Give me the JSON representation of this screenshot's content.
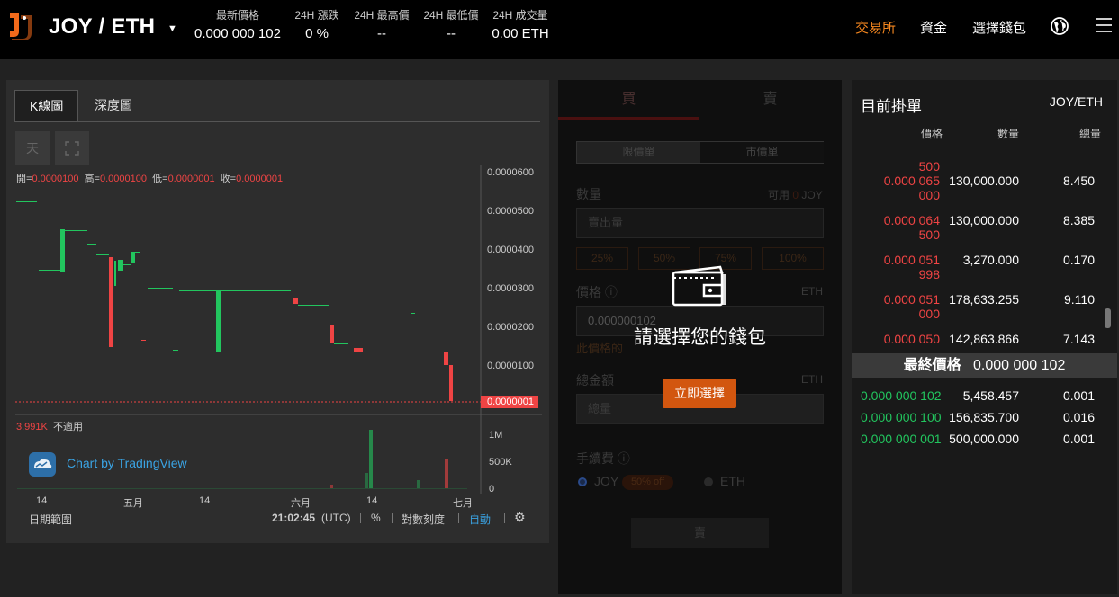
{
  "header": {
    "pair": "JOY / ETH",
    "stats": [
      {
        "label": "最新價格",
        "value": "0.000 000 102"
      },
      {
        "label": "24H 漲跌",
        "value": "0 %"
      },
      {
        "label": "24H 最高價",
        "value": "--"
      },
      {
        "label": "24H 最低價",
        "value": "--"
      },
      {
        "label": "24H 成交量",
        "value": "0.00 ETH"
      }
    ],
    "nav": {
      "exchange": "交易所",
      "funds": "資金",
      "wallet": "選擇錢包"
    }
  },
  "chart": {
    "tabs": {
      "kline": "K線圖",
      "depth": "深度圖"
    },
    "interval": "天",
    "ohlc": {
      "open_label": "開=",
      "open": "0.0000100",
      "high_label": "高=",
      "high": "0.0000100",
      "low_label": "低=",
      "low": "0.0000001",
      "close_label": "收=",
      "close": "0.0000001"
    },
    "price_axis": [
      "0.0000600",
      "0.0000500",
      "0.0000400",
      "0.0000300",
      "0.0000200",
      "0.0000100"
    ],
    "last_price_label": "0.0000001",
    "volume_label": "3.991K",
    "volume_na": "不適用",
    "volume_axis": [
      "1M",
      "500K",
      "0"
    ],
    "time_axis": [
      "14",
      "五月",
      "14",
      "六月",
      "14",
      "七月"
    ],
    "brand": "Chart by TradingView",
    "bottom": {
      "range": "日期範圍",
      "time": "21:02:45",
      "tz": "(UTC)",
      "percent": "%",
      "log": "對數刻度",
      "auto": "自動"
    },
    "colors": {
      "up": "#22c55e",
      "down": "#ef4444"
    }
  },
  "trade": {
    "buy_tab": "買",
    "sell_tab": "賣",
    "order_types": {
      "limit": "限價單",
      "market": "市價單"
    },
    "quantity_label": "數量",
    "available_label": "可用",
    "available_value": "0",
    "available_unit": "JOY",
    "quantity_placeholder": "賣出量",
    "percents": [
      "25%",
      "50%",
      "75%",
      "100%"
    ],
    "price_label": "價格",
    "price_unit": "ETH",
    "price_value": "0.000000102",
    "price_hint": "此價格的",
    "total_label": "總金額",
    "total_unit": "ETH",
    "total_placeholder": "總量",
    "fee_label": "手續費",
    "fee_joy": "JOY",
    "fee_discount": "50% off",
    "fee_eth": "ETH",
    "submit": "賣",
    "overlay_message": "請選擇您的錢包",
    "overlay_button": "立即選擇"
  },
  "orderbook": {
    "title": "目前掛單",
    "pair": "JOY/ETH",
    "headers": {
      "price": "價格",
      "qty": "數量",
      "total": "總量"
    },
    "asks": [
      {
        "p1": "",
        "p2": "500",
        "q": "",
        "t": ""
      },
      {
        "p1": "0.000 065",
        "p2": "000",
        "q": "130,000.000",
        "t": "8.450"
      },
      {
        "p1": "0.000 064",
        "p2": "500",
        "q": "130,000.000",
        "t": "8.385"
      },
      {
        "p1": "0.000 051",
        "p2": "998",
        "q": "3,270.000",
        "t": "0.170"
      },
      {
        "p1": "0.000 051",
        "p2": "000",
        "q": "178,633.255",
        "t": "9.110"
      },
      {
        "p1": "0.000 050",
        "p2": "",
        "q": "142,863.866",
        "t": "7.143"
      }
    ],
    "last_label": "最終價格",
    "last_value": "0.000 000 102",
    "bids": [
      {
        "p": "0.000 000 102",
        "q": "5,458.457",
        "t": "0.001"
      },
      {
        "p": "0.000 000 100",
        "q": "156,835.700",
        "t": "0.016"
      },
      {
        "p": "0.000 000 001",
        "q": "500,000.000",
        "t": "0.001"
      }
    ]
  }
}
